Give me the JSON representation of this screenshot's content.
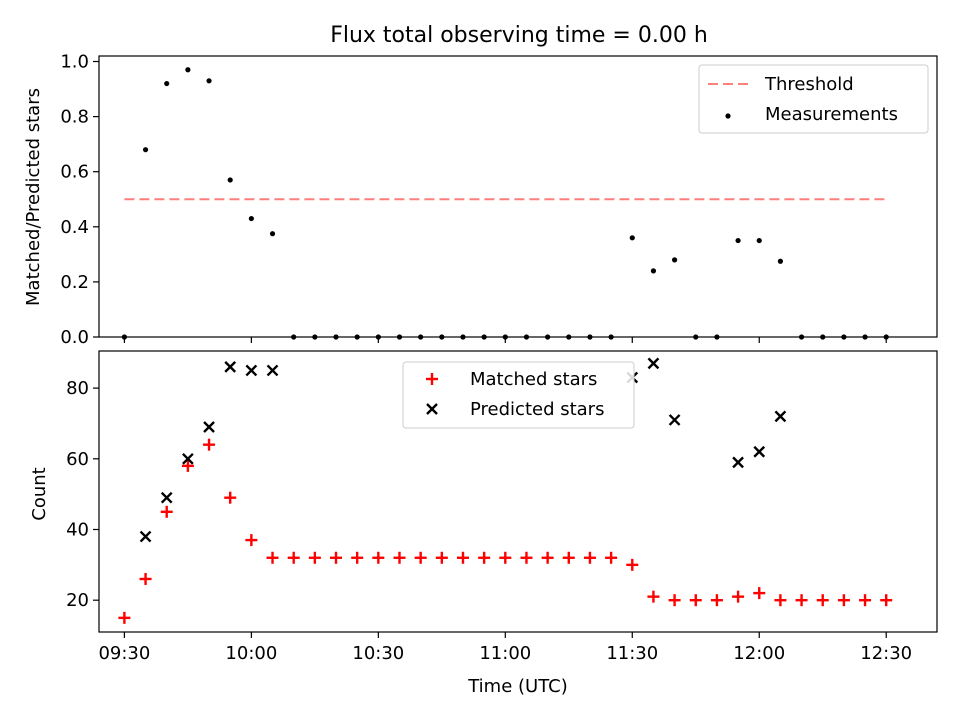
{
  "title": "Flux total observing time = 0.00 h",
  "xlabel": "Time (UTC)",
  "x_ticks": [
    "09:30",
    "10:00",
    "10:30",
    "11:00",
    "11:30",
    "12:00",
    "12:30"
  ],
  "chart_data": [
    {
      "type": "scatter",
      "name": "ratio-panel",
      "ylabel": "Matched/Predicted stars",
      "xlim_minutes": [
        564,
        762
      ],
      "ylim": [
        0,
        1.02
      ],
      "y_ticks": [
        "0.0",
        "0.2",
        "0.4",
        "0.6",
        "0.8",
        "1.0"
      ],
      "y_tick_values": [
        0,
        0.2,
        0.4,
        0.6,
        0.8,
        1.0
      ],
      "threshold": {
        "label": "Threshold",
        "y": 0.5,
        "x_range_minutes": [
          570,
          750
        ],
        "color": "#ff7f7f"
      },
      "measurements_label": "Measurements",
      "x_minutes": [
        570,
        575,
        580,
        585,
        590,
        595,
        600,
        605,
        610,
        615,
        620,
        625,
        630,
        635,
        640,
        645,
        650,
        655,
        660,
        665,
        670,
        675,
        680,
        685,
        690,
        695,
        700,
        705,
        710,
        715,
        720,
        725,
        730,
        735,
        740,
        745,
        750
      ],
      "values": [
        0.0,
        0.68,
        0.92,
        0.97,
        0.93,
        0.57,
        0.43,
        0.375,
        0.0,
        0.0,
        0.0,
        0.0,
        0.0,
        0.0,
        0.0,
        0.0,
        0.0,
        0.0,
        0.0,
        0.0,
        0.0,
        0.0,
        0.0,
        0.0,
        0.36,
        0.24,
        0.28,
        0.0,
        0.0,
        0.35,
        0.35,
        0.275,
        0.0,
        0.0,
        0.0,
        0.0,
        0.0
      ],
      "legend_position": "top-right"
    },
    {
      "type": "scatter",
      "name": "count-panel",
      "ylabel": "Count",
      "xlim_minutes": [
        564,
        762
      ],
      "ylim": [
        11,
        90.5
      ],
      "y_ticks": [
        "20",
        "40",
        "60",
        "80"
      ],
      "y_tick_values": [
        20,
        40,
        60,
        80
      ],
      "series": [
        {
          "name": "Matched stars",
          "marker": "plus",
          "color": "#ff0000",
          "x_minutes": [
            570,
            575,
            580,
            585,
            590,
            595,
            600,
            605,
            610,
            615,
            620,
            625,
            630,
            635,
            640,
            645,
            650,
            655,
            660,
            665,
            670,
            675,
            680,
            685,
            690,
            695,
            700,
            705,
            710,
            715,
            720,
            725,
            730,
            735,
            740,
            745,
            750
          ],
          "values": [
            15,
            26,
            45,
            58,
            64,
            49,
            37,
            32,
            32,
            32,
            32,
            32,
            32,
            32,
            32,
            32,
            32,
            32,
            32,
            32,
            32,
            32,
            32,
            32,
            30,
            21,
            20,
            20,
            20,
            21,
            22,
            20,
            20,
            20,
            20,
            20,
            20
          ]
        },
        {
          "name": "Predicted stars",
          "marker": "x",
          "color": "#000000",
          "x_minutes": [
            575,
            580,
            585,
            590,
            595,
            600,
            605,
            690,
            695,
            700,
            715,
            720,
            725
          ],
          "values": [
            38,
            49,
            60,
            69,
            86,
            85,
            85,
            83,
            87,
            71,
            59,
            62,
            72
          ]
        }
      ],
      "legend_position": "top-center"
    }
  ]
}
